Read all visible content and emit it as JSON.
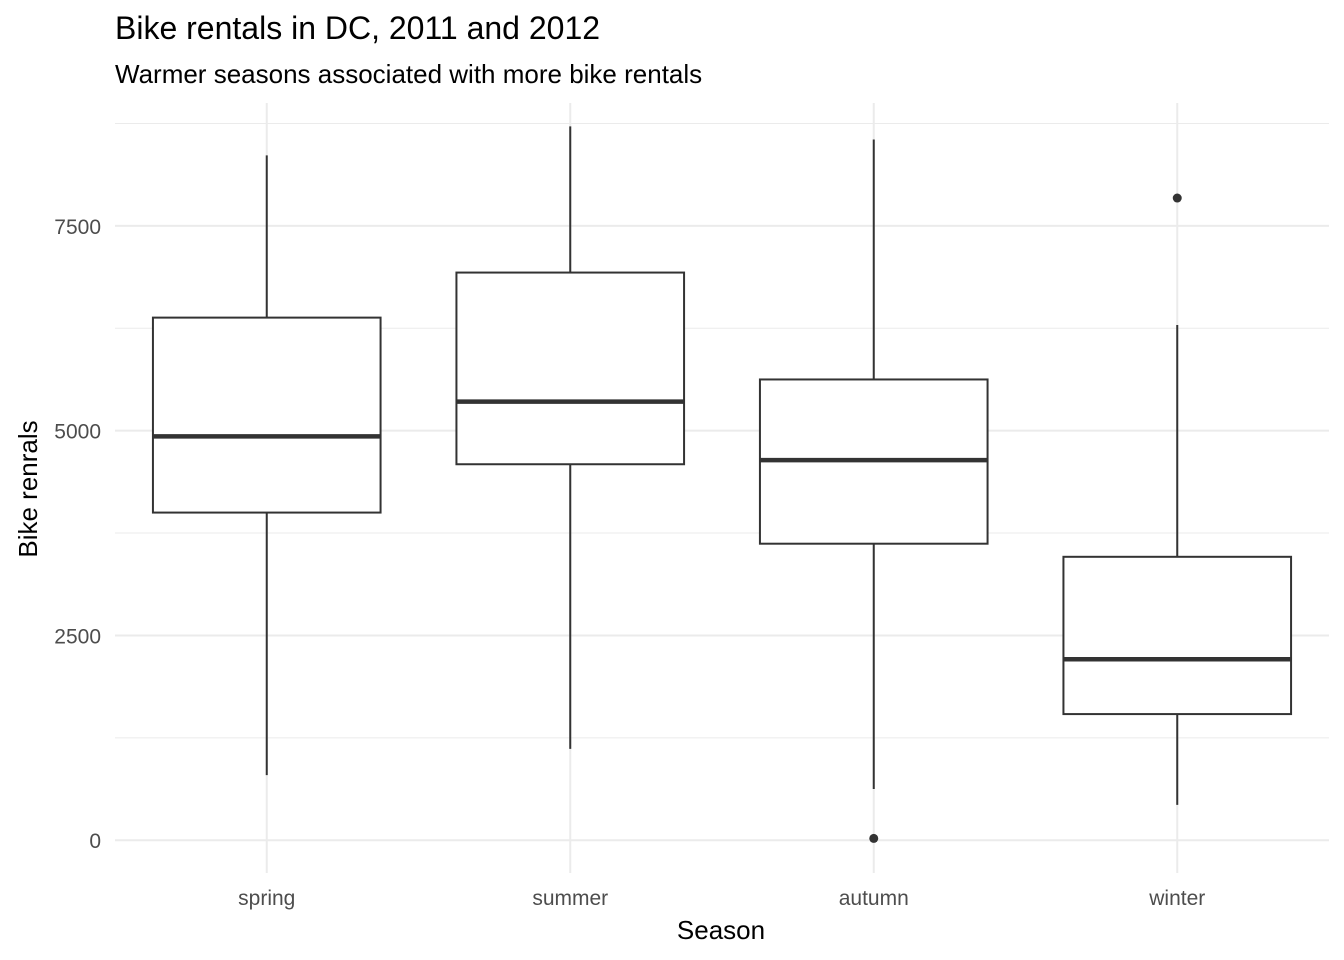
{
  "chart_data": {
    "type": "boxplot",
    "title": "Bike rentals in DC, 2011 and 2012",
    "subtitle": "Warmer seasons associated with more bike rentals",
    "xlabel": "Season",
    "ylabel": "Bike renrals",
    "categories": [
      "spring",
      "summer",
      "autumn",
      "winter"
    ],
    "ylim": [
      -400,
      9000
    ],
    "yticks": [
      0,
      2500,
      5000,
      7500
    ],
    "y_tick_labels": [
      "0",
      "2500",
      "5000",
      "7500"
    ],
    "grid": true,
    "boxes": [
      {
        "category": "spring",
        "lower_whisker": 795,
        "q1": 4000,
        "median": 4930,
        "q3": 6380,
        "upper_whisker": 8360,
        "outliers": []
      },
      {
        "category": "summer",
        "lower_whisker": 1115,
        "q1": 4590,
        "median": 5355,
        "q3": 6930,
        "upper_whisker": 8715,
        "outliers": []
      },
      {
        "category": "autumn",
        "lower_whisker": 625,
        "q1": 3620,
        "median": 4640,
        "q3": 5625,
        "upper_whisker": 8555,
        "outliers": [
          22
        ]
      },
      {
        "category": "winter",
        "lower_whisker": 431,
        "q1": 1540,
        "median": 2210,
        "q3": 3460,
        "upper_whisker": 6290,
        "outliers": [
          7840
        ]
      }
    ],
    "colors": {
      "box_line": "#333333",
      "grid": "#ebebeb",
      "background": "#ffffff",
      "tick_text": "#4d4d4d"
    }
  }
}
